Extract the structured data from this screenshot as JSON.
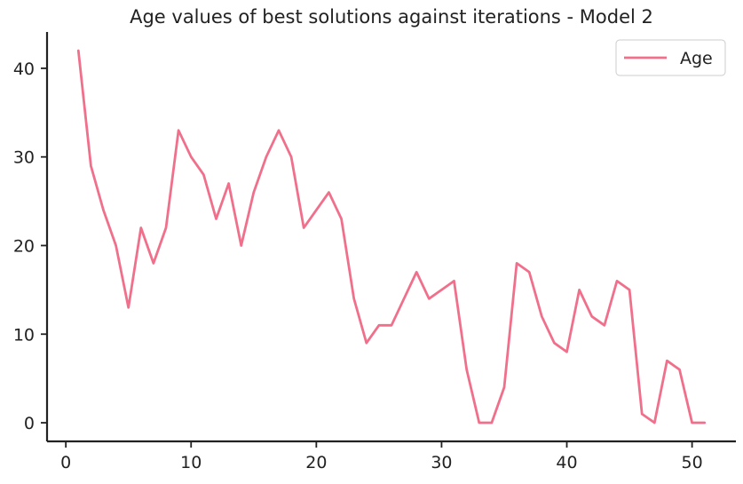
{
  "chart_data": {
    "type": "line",
    "title": "Age values of best solutions against iterations - Model 2",
    "xlabel": "",
    "ylabel": "",
    "xlim": [
      -1.5,
      53.5
    ],
    "ylim": [
      -2.1,
      44.1
    ],
    "xticks": [
      0,
      10,
      20,
      30,
      40,
      50
    ],
    "yticks": [
      0,
      10,
      20,
      30,
      40
    ],
    "grid": false,
    "legend_position": "top-right",
    "series": [
      {
        "name": "Age",
        "color": "#f0708c",
        "x": [
          1,
          2,
          3,
          4,
          5,
          6,
          7,
          8,
          9,
          10,
          11,
          12,
          13,
          14,
          15,
          16,
          17,
          18,
          19,
          20,
          21,
          22,
          23,
          24,
          25,
          26,
          27,
          28,
          29,
          30,
          31,
          32,
          33,
          34,
          35,
          36,
          37,
          38,
          39,
          40,
          41,
          42,
          43,
          44,
          45,
          46,
          47,
          48,
          49,
          50,
          51
        ],
        "y": [
          42,
          29,
          24,
          20,
          13,
          22,
          18,
          22,
          33,
          30,
          28,
          23,
          27,
          20,
          26,
          30,
          33,
          30,
          22,
          24,
          26,
          23,
          14,
          9,
          11,
          11,
          14,
          17,
          14,
          15,
          16,
          6,
          0,
          0,
          4,
          18,
          17,
          12,
          9,
          8,
          15,
          12,
          11,
          16,
          15,
          1,
          0,
          7,
          6,
          0,
          0
        ]
      }
    ]
  }
}
